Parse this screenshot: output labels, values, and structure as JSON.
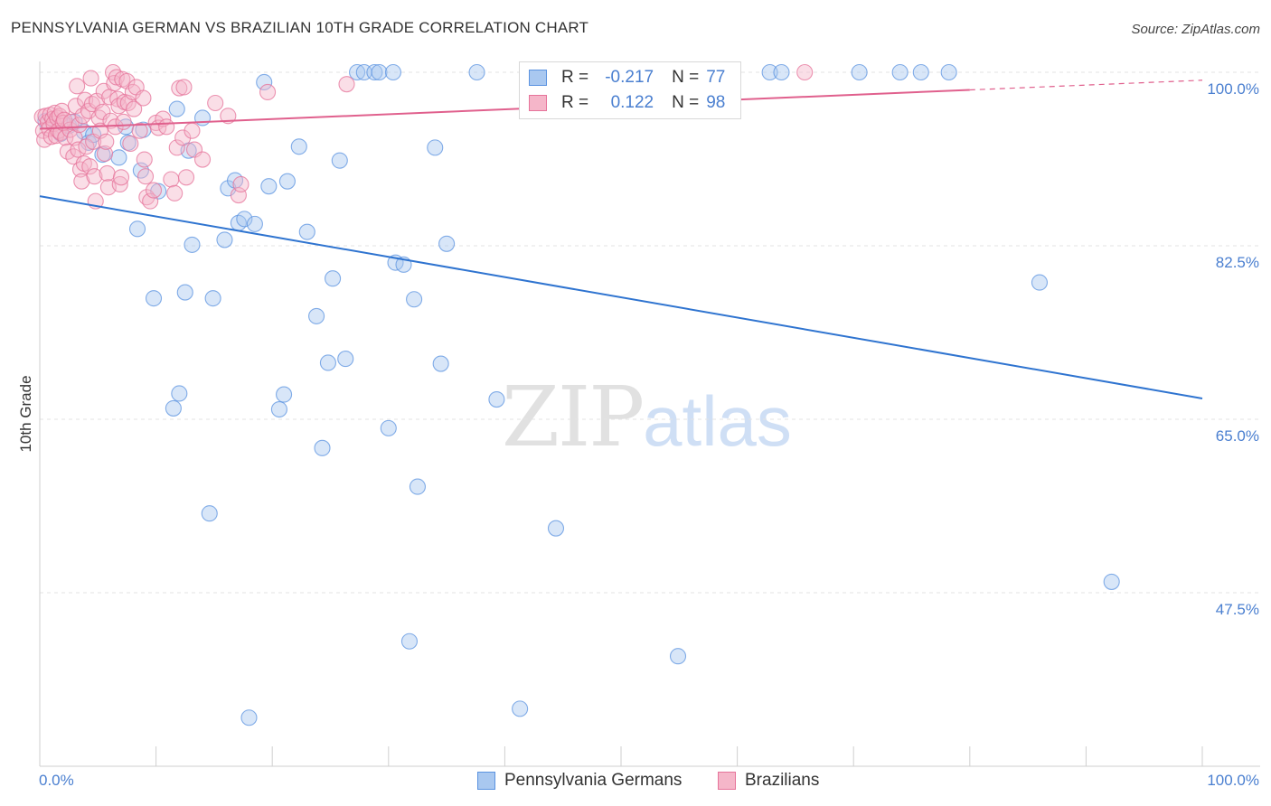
{
  "title": "PENNSYLVANIA GERMAN VS BRAZILIAN 10TH GRADE CORRELATION CHART",
  "source": "Source: ZipAtlas.com",
  "watermark": {
    "zip": "ZIP",
    "atlas": "atlas"
  },
  "legend": {
    "r_label": "R =",
    "n_label": "N =",
    "rows": [
      {
        "r": "-0.217",
        "n": "77",
        "color": "#a9c8f0"
      },
      {
        "r": "0.122",
        "n": "98",
        "color": "#f5b6c9"
      }
    ]
  },
  "bottom_legend": [
    {
      "label": "Pennsylvania Germans",
      "color": "#a9c8f0"
    },
    {
      "label": "Brazilians",
      "color": "#f5b6c9"
    }
  ],
  "chart_data": {
    "type": "scatter",
    "ylabel": "10th Grade",
    "xlabel": "",
    "xlim": [
      0,
      100
    ],
    "ylim": [
      30,
      100
    ],
    "x_tick_labels": [
      "0.0%",
      "100.0%"
    ],
    "y_tick_labels": [
      "100.0%",
      "82.5%",
      "65.0%",
      "47.5%"
    ],
    "y_ticks": [
      100.0,
      82.5,
      65.0,
      47.5
    ],
    "grid": true,
    "series": [
      {
        "name": "Pennsylvania Germans",
        "color": "#5b93e0",
        "fill": "#a9c8f0",
        "r": -0.217,
        "n": 77,
        "trend": {
          "x0": 0,
          "y0": 87.5,
          "x1": 100,
          "y1": 67.1
        },
        "points": [
          [
            0.5,
            95.1
          ],
          [
            1.8,
            93.8
          ],
          [
            2.5,
            94.6
          ],
          [
            3.0,
            95.0
          ],
          [
            3.8,
            94.0
          ],
          [
            4.2,
            92.9
          ],
          [
            4.6,
            93.7
          ],
          [
            5.4,
            91.7
          ],
          [
            6.8,
            91.4
          ],
          [
            7.4,
            94.5
          ],
          [
            7.6,
            92.9
          ],
          [
            8.4,
            84.2
          ],
          [
            8.7,
            90.1
          ],
          [
            8.9,
            94.2
          ],
          [
            9.8,
            77.2
          ],
          [
            10.2,
            88.0
          ],
          [
            11.5,
            66.1
          ],
          [
            11.8,
            96.3
          ],
          [
            12.0,
            67.6
          ],
          [
            12.5,
            77.8
          ],
          [
            12.8,
            92.1
          ],
          [
            13.1,
            82.6
          ],
          [
            14.0,
            95.4
          ],
          [
            14.6,
            55.5
          ],
          [
            14.9,
            77.2
          ],
          [
            15.9,
            83.1
          ],
          [
            16.2,
            88.3
          ],
          [
            16.8,
            89.1
          ],
          [
            17.1,
            84.8
          ],
          [
            17.6,
            85.2
          ],
          [
            18.0,
            34.9
          ],
          [
            18.5,
            84.7
          ],
          [
            19.3,
            99.0
          ],
          [
            19.7,
            88.5
          ],
          [
            20.6,
            66.0
          ],
          [
            21.0,
            67.5
          ],
          [
            21.3,
            89.0
          ],
          [
            22.3,
            92.5
          ],
          [
            23.0,
            83.9
          ],
          [
            23.8,
            75.4
          ],
          [
            24.3,
            62.1
          ],
          [
            24.8,
            70.7
          ],
          [
            25.2,
            79.2
          ],
          [
            25.8,
            91.1
          ],
          [
            26.3,
            71.1
          ],
          [
            27.3,
            100.0
          ],
          [
            27.9,
            100.0
          ],
          [
            28.8,
            100.0
          ],
          [
            29.2,
            100.0
          ],
          [
            30.4,
            100.0
          ],
          [
            30.0,
            64.1
          ],
          [
            30.6,
            80.8
          ],
          [
            31.3,
            80.6
          ],
          [
            31.8,
            42.6
          ],
          [
            32.2,
            77.1
          ],
          [
            32.5,
            58.2
          ],
          [
            34.0,
            92.4
          ],
          [
            34.5,
            70.6
          ],
          [
            35.0,
            82.7
          ],
          [
            37.6,
            100.0
          ],
          [
            39.3,
            67.0
          ],
          [
            41.3,
            35.8
          ],
          [
            44.4,
            54.0
          ],
          [
            46.9,
            100.0
          ],
          [
            48.3,
            100.0
          ],
          [
            50.2,
            100.0
          ],
          [
            54.6,
            100.0
          ],
          [
            54.9,
            41.1
          ],
          [
            58.5,
            100.0
          ],
          [
            62.8,
            100.0
          ],
          [
            63.8,
            100.0
          ],
          [
            70.5,
            100.0
          ],
          [
            74.0,
            100.0
          ],
          [
            75.8,
            100.0
          ],
          [
            78.2,
            100.0
          ],
          [
            86.0,
            78.8
          ],
          [
            92.2,
            48.6
          ]
        ]
      },
      {
        "name": "Brazilians",
        "color": "#e6739a",
        "fill": "#f5b6c9",
        "r": 0.122,
        "n": 98,
        "trend": {
          "x0": 0,
          "y0": 94.3,
          "x1": 100,
          "y1": 99.2,
          "solid_until_x": 80
        },
        "points": [
          [
            0.2,
            95.5
          ],
          [
            0.3,
            94.1
          ],
          [
            0.4,
            93.2
          ],
          [
            0.5,
            95.6
          ],
          [
            0.7,
            95.0
          ],
          [
            0.8,
            94.3
          ],
          [
            0.9,
            95.7
          ],
          [
            1.0,
            93.5
          ],
          [
            1.1,
            95.3
          ],
          [
            1.2,
            94.8
          ],
          [
            1.3,
            95.9
          ],
          [
            1.4,
            93.6
          ],
          [
            1.5,
            95.4
          ],
          [
            1.6,
            94.1
          ],
          [
            1.7,
            95.6
          ],
          [
            1.8,
            93.9
          ],
          [
            1.9,
            96.1
          ],
          [
            2.0,
            94.9
          ],
          [
            2.1,
            95.2
          ],
          [
            2.2,
            93.4
          ],
          [
            2.4,
            92.0
          ],
          [
            2.6,
            94.2
          ],
          [
            2.7,
            95.0
          ],
          [
            2.9,
            91.5
          ],
          [
            3.0,
            93.4
          ],
          [
            3.1,
            96.6
          ],
          [
            3.2,
            98.6
          ],
          [
            3.3,
            92.2
          ],
          [
            3.4,
            94.7
          ],
          [
            3.5,
            90.2
          ],
          [
            3.6,
            89.0
          ],
          [
            3.7,
            95.6
          ],
          [
            3.8,
            90.8
          ],
          [
            3.9,
            97.2
          ],
          [
            4.0,
            92.5
          ],
          [
            4.2,
            96.1
          ],
          [
            4.3,
            90.5
          ],
          [
            4.4,
            99.4
          ],
          [
            4.5,
            96.8
          ],
          [
            4.6,
            93.0
          ],
          [
            4.7,
            89.5
          ],
          [
            4.8,
            87.0
          ],
          [
            4.9,
            97.1
          ],
          [
            5.1,
            95.4
          ],
          [
            5.2,
            94.1
          ],
          [
            5.4,
            96.0
          ],
          [
            5.5,
            98.1
          ],
          [
            5.6,
            91.8
          ],
          [
            5.7,
            93.0
          ],
          [
            5.8,
            89.8
          ],
          [
            5.9,
            88.4
          ],
          [
            6.0,
            97.5
          ],
          [
            6.1,
            95.1
          ],
          [
            6.3,
            100.0
          ],
          [
            6.4,
            98.9
          ],
          [
            6.5,
            94.5
          ],
          [
            6.6,
            99.5
          ],
          [
            6.7,
            97.3
          ],
          [
            6.8,
            96.6
          ],
          [
            6.9,
            88.7
          ],
          [
            7.0,
            89.4
          ],
          [
            7.1,
            99.3
          ],
          [
            7.2,
            95.0
          ],
          [
            7.3,
            97.0
          ],
          [
            7.5,
            99.1
          ],
          [
            7.6,
            96.9
          ],
          [
            7.8,
            92.8
          ],
          [
            8.0,
            98.0
          ],
          [
            8.1,
            96.3
          ],
          [
            8.3,
            98.5
          ],
          [
            8.6,
            94.1
          ],
          [
            8.9,
            97.4
          ],
          [
            9.0,
            91.2
          ],
          [
            9.1,
            89.5
          ],
          [
            9.2,
            87.4
          ],
          [
            9.5,
            87.0
          ],
          [
            9.8,
            88.1
          ],
          [
            10.0,
            94.9
          ],
          [
            10.2,
            94.4
          ],
          [
            10.6,
            95.3
          ],
          [
            10.9,
            94.5
          ],
          [
            11.3,
            89.2
          ],
          [
            11.6,
            87.8
          ],
          [
            11.8,
            92.4
          ],
          [
            12.0,
            98.4
          ],
          [
            12.3,
            93.4
          ],
          [
            12.4,
            98.5
          ],
          [
            12.6,
            89.4
          ],
          [
            13.1,
            94.1
          ],
          [
            13.3,
            92.2
          ],
          [
            14.0,
            91.2
          ],
          [
            15.1,
            96.9
          ],
          [
            16.2,
            95.6
          ],
          [
            17.1,
            87.6
          ],
          [
            17.3,
            88.7
          ],
          [
            19.6,
            98.0
          ],
          [
            26.4,
            98.8
          ],
          [
            65.8,
            100.0
          ]
        ]
      }
    ]
  }
}
